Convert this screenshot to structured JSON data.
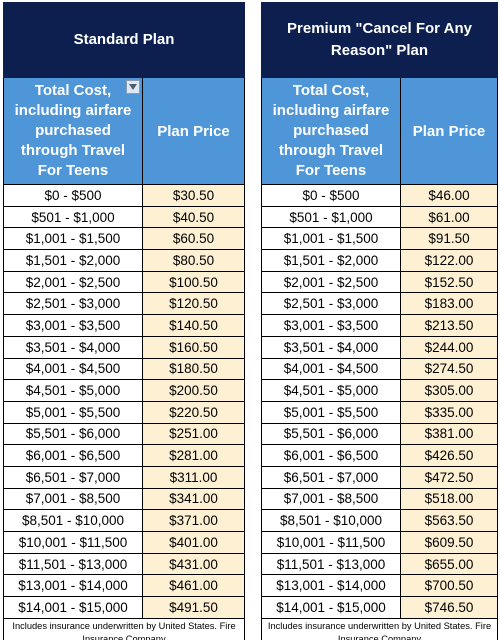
{
  "standard": {
    "title": "Standard Plan",
    "header_cost": "Total Cost, including airfare purchased through Travel For Teens",
    "header_price": "Plan Price",
    "footer": "Includes insurance underwritten by United States. Fire Insurance Company",
    "rows": [
      {
        "range": "$0 - $500",
        "price": "$30.50"
      },
      {
        "range": "$501 - $1,000",
        "price": "$40.50"
      },
      {
        "range": "$1,001 - $1,500",
        "price": "$60.50"
      },
      {
        "range": "$1,501 - $2,000",
        "price": "$80.50"
      },
      {
        "range": "$2,001 - $2,500",
        "price": "$100.50"
      },
      {
        "range": "$2,501 - $3,000",
        "price": "$120.50"
      },
      {
        "range": "$3,001 - $3,500",
        "price": "$140.50"
      },
      {
        "range": "$3,501 - $4,000",
        "price": "$160.50"
      },
      {
        "range": "$4,001 - $4,500",
        "price": "$180.50"
      },
      {
        "range": "$4,501 - $5,000",
        "price": "$200.50"
      },
      {
        "range": "$5,001 - $5,500",
        "price": "$220.50"
      },
      {
        "range": "$5,501 - $6,000",
        "price": "$251.00"
      },
      {
        "range": "$6,001 - $6,500",
        "price": "$281.00"
      },
      {
        "range": "$6,501 - $7,000",
        "price": "$311.00"
      },
      {
        "range": "$7,001 - $8,500",
        "price": "$341.00"
      },
      {
        "range": "$8,501 - $10,000",
        "price": "$371.00"
      },
      {
        "range": "$10,001 - $11,500",
        "price": "$401.00"
      },
      {
        "range": "$11,501 - $13,000",
        "price": "$431.00"
      },
      {
        "range": "$13,001 - $14,000",
        "price": "$461.00"
      },
      {
        "range": "$14,001 - $15,000",
        "price": "$491.50"
      }
    ]
  },
  "premium": {
    "title": "Premium \"Cancel For Any Reason\" Plan",
    "header_cost": "Total Cost, including airfare purchased through Travel For Teens",
    "header_price": "Plan Price",
    "footer": "Includes insurance underwritten by United States. Fire Insurance Company",
    "rows": [
      {
        "range": "$0 - $500",
        "price": "$46.00"
      },
      {
        "range": "$501 - $1,000",
        "price": "$61.00"
      },
      {
        "range": "$1,001 - $1,500",
        "price": "$91.50"
      },
      {
        "range": "$1,501 - $2,000",
        "price": "$122.00"
      },
      {
        "range": "$2,001 - $2,500",
        "price": "$152.50"
      },
      {
        "range": "$2,501 - $3,000",
        "price": "$183.00"
      },
      {
        "range": "$3,001 - $3,500",
        "price": "$213.50"
      },
      {
        "range": "$3,501 - $4,000",
        "price": "$244.00"
      },
      {
        "range": "$4,001 - $4,500",
        "price": "$274.50"
      },
      {
        "range": "$4,501 - $5,000",
        "price": "$305.00"
      },
      {
        "range": "$5,001 - $5,500",
        "price": "$335.00"
      },
      {
        "range": "$5,501 - $6,000",
        "price": "$381.00"
      },
      {
        "range": "$6,001 - $6,500",
        "price": "$426.50"
      },
      {
        "range": "$6,501 - $7,000",
        "price": "$472.50"
      },
      {
        "range": "$7,001 - $8,500",
        "price": "$518.00"
      },
      {
        "range": "$8,501 - $10,000",
        "price": "$563.50"
      },
      {
        "range": "$10,001 - $11,500",
        "price": "$609.50"
      },
      {
        "range": "$11,501 - $13,000",
        "price": "$655.00"
      },
      {
        "range": "$13,001 - $14,000",
        "price": "$700.50"
      },
      {
        "range": "$14,001 - $15,000",
        "price": "$746.50"
      }
    ]
  },
  "colors": {
    "title_bg": "#0c1f4f",
    "header_bg": "#4e96d8",
    "price_bg": "#fdf0d3"
  },
  "icons": {
    "filter": "filter-dropdown-icon"
  }
}
